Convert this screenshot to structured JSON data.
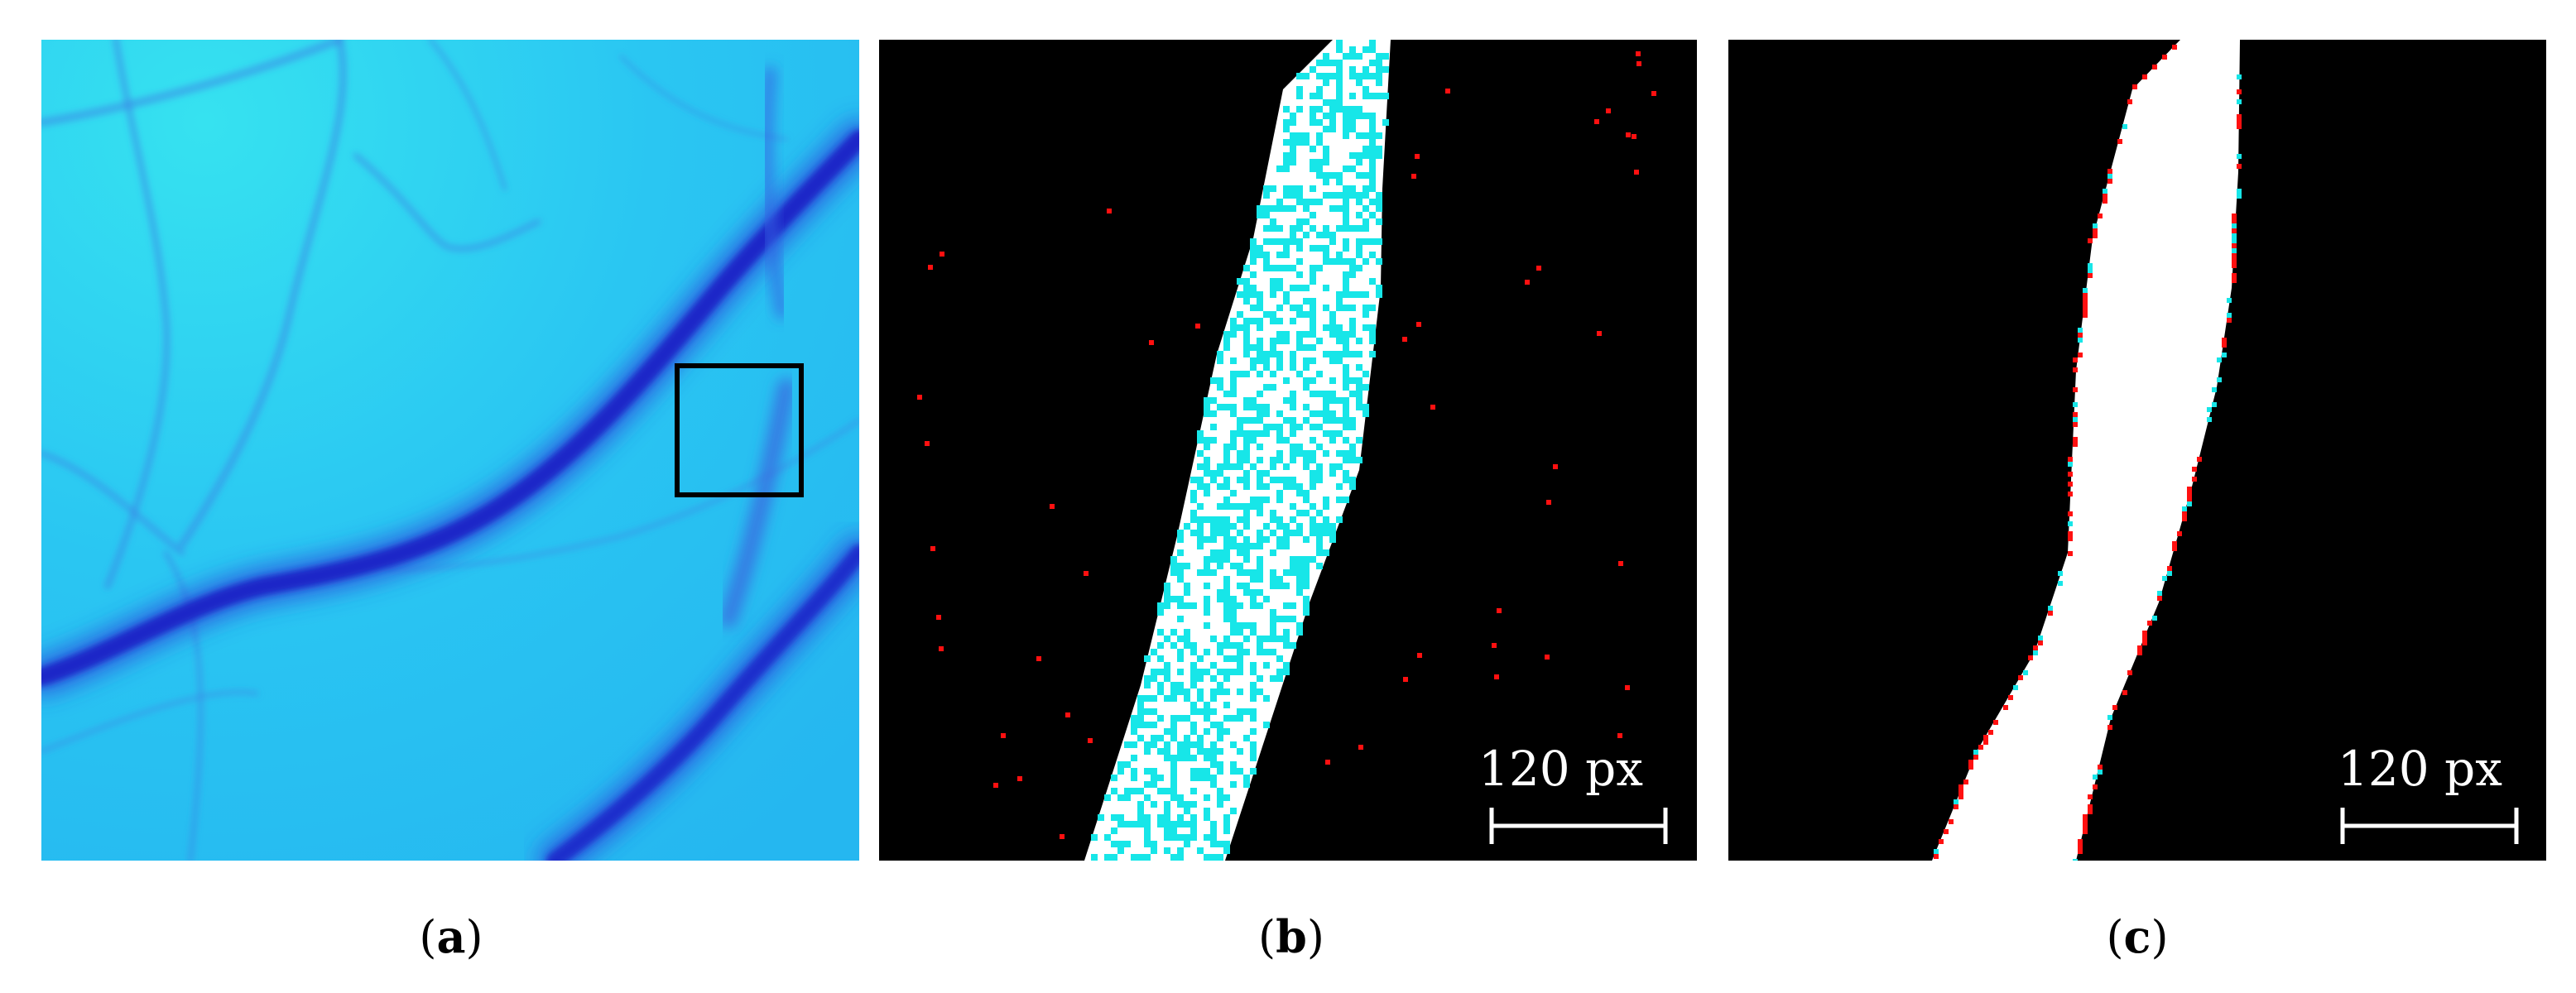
{
  "panels": [
    {
      "id": "a",
      "caption": {
        "open": "(",
        "letter": "a",
        "close": ")"
      },
      "image": "blue vessel micrograph with region-of-interest box"
    },
    {
      "id": "b",
      "caption": {
        "open": "(",
        "letter": "b",
        "close": ")"
      },
      "scale_bar_label": "120 px"
    },
    {
      "id": "c",
      "caption": {
        "open": "(",
        "letter": "c",
        "close": ")"
      },
      "scale_bar_label": "120 px"
    }
  ],
  "colors": {
    "background_a": "#2fd2f4",
    "vessel": "#1e2fd0",
    "segment_white": "#ffffff",
    "segment_cyan": "#17e6e8",
    "segment_red": "#ff1010",
    "black": "#000000"
  }
}
